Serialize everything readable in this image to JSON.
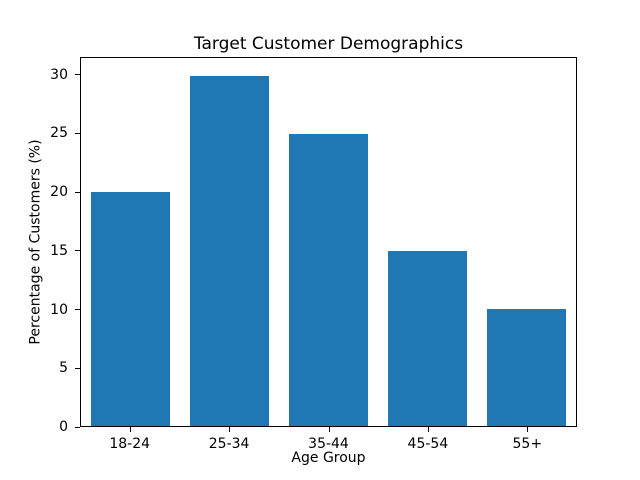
{
  "chart_data": {
    "type": "bar",
    "title": "Target Customer Demographics",
    "xlabel": "Age Group",
    "ylabel": "Percentage of Customers (%)",
    "categories": [
      "18-24",
      "25-34",
      "35-44",
      "45-54",
      "55+"
    ],
    "values": [
      20,
      30,
      25,
      15,
      10
    ],
    "yticks": [
      0,
      5,
      10,
      15,
      20,
      25,
      30
    ],
    "ylim": [
      0,
      31.5
    ],
    "bar_width_fraction": 0.8,
    "bar_color": "#1f77b4",
    "background_color": "#ffffff",
    "frame_color": "#000000",
    "grid": false,
    "legend": "none"
  }
}
